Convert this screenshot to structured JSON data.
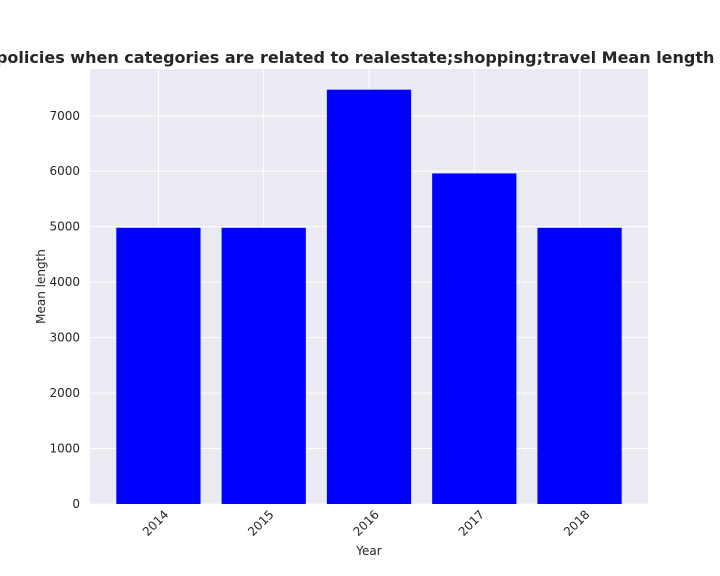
{
  "chart_data": {
    "type": "bar",
    "title": "Mean length of privacy policies when categories are related to realestate;shopping;travel Mean length in privacy policies by Year",
    "xlabel": "Year",
    "ylabel": "Mean length",
    "categories": [
      "2014",
      "2015",
      "2016",
      "2017",
      "2018"
    ],
    "values": [
      4980,
      4980,
      7470,
      5960,
      4980
    ],
    "ylim": [
      0,
      7843
    ],
    "yticks": [
      0,
      1000,
      2000,
      3000,
      4000,
      5000,
      6000,
      7000
    ],
    "grid": true,
    "legend": "none",
    "colors": {
      "bar": "#0000ff",
      "plot_background": "#eaeaf2",
      "grid": "#ffffff",
      "text": "#262626"
    }
  }
}
